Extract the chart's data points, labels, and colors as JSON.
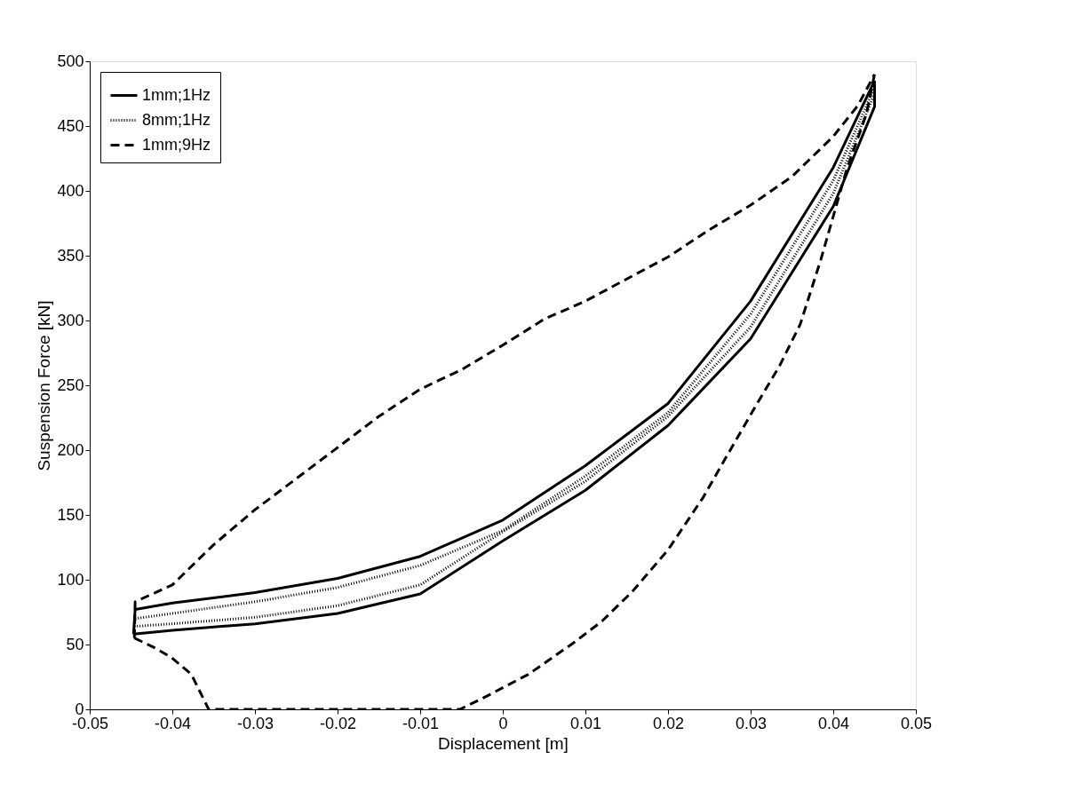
{
  "chart_data": {
    "type": "line",
    "xlabel": "Displacement [m]",
    "ylabel": "Suspension Force [kN]",
    "xlim": [
      -0.05,
      0.05
    ],
    "xticks": [
      -0.05,
      -0.04,
      -0.03,
      -0.02,
      -0.01,
      0,
      0.01,
      0.02,
      0.03,
      0.04,
      0.05
    ],
    "ylim": [
      0,
      500
    ],
    "yticks": [
      0,
      50,
      100,
      150,
      200,
      250,
      300,
      350,
      400,
      450,
      500
    ],
    "grid": false,
    "legend": "top left",
    "marker": "none",
    "series": [
      {
        "name": "1mm;1Hz",
        "color": "#000000",
        "line_style": "solid",
        "x": [
          -0.0447,
          -0.0445,
          -0.04,
          -0.03,
          -0.02,
          -0.01,
          0,
          0.01,
          0.02,
          0.03,
          0.04,
          0.045
        ],
        "values": [
          58,
          77,
          82,
          90,
          101,
          118,
          146,
          188,
          236,
          315,
          418,
          485
        ]
      },
      {
        "color": "#000000",
        "line_style": "solid",
        "x": [
          -0.0447,
          -0.04,
          -0.03,
          -0.02,
          -0.01,
          0,
          0.01,
          0.02,
          0.03,
          0.04,
          0.045,
          0.045
        ],
        "values": [
          58,
          61,
          66,
          74,
          89,
          130,
          169,
          219,
          286,
          388,
          465,
          485
        ]
      },
      {
        "name": "8mm;1Hz",
        "color": "#000000",
        "line_style": "dotted",
        "x": [
          -0.0446,
          -0.0445,
          -0.04,
          -0.03,
          -0.02,
          -0.01,
          0,
          0.01,
          0.02,
          0.03,
          0.04,
          0.045
        ],
        "values": [
          64,
          70,
          74,
          83,
          94,
          111,
          138,
          180,
          229,
          305,
          408,
          480
        ]
      },
      {
        "color": "#000000",
        "line_style": "dotted",
        "x": [
          -0.0446,
          -0.04,
          -0.03,
          -0.02,
          -0.01,
          0,
          0.01,
          0.02,
          0.03,
          0.04,
          0.045,
          0.045
        ],
        "values": [
          64,
          66,
          71,
          80,
          96,
          137,
          176,
          226,
          295,
          398,
          475,
          480
        ]
      },
      {
        "name": "1mm;9Hz",
        "color": "#000000",
        "line_style": "dashed",
        "x": [
          -0.0446,
          -0.0445,
          -0.04,
          -0.035,
          -0.03,
          -0.025,
          -0.02,
          -0.015,
          -0.01,
          -0.005,
          0,
          0.005,
          0.01,
          0.015,
          0.02,
          0.025,
          0.03,
          0.035,
          0.04,
          0.043,
          0.045
        ],
        "values": [
          55,
          83,
          96,
          127,
          154,
          178,
          202,
          226,
          247,
          262,
          281,
          301,
          315,
          332,
          349,
          370,
          389,
          411,
          442,
          466,
          490
        ]
      },
      {
        "color": "#000000",
        "line_style": "dashed",
        "x": [
          -0.0446,
          -0.0423,
          -0.0401,
          -0.0377,
          -0.0356,
          -0.0052,
          -0.0023,
          0.0031,
          0.0085,
          0.012,
          0.0157,
          0.02,
          0.0243,
          0.0268,
          0.0307,
          0.0335,
          0.036,
          0.0385,
          0.0416,
          0.044,
          0.045
        ],
        "values": [
          55,
          48,
          40,
          27,
          0,
          0,
          9,
          27,
          51,
          68,
          91,
          123,
          164,
          192,
          235,
          265,
          297,
          347,
          416,
          459,
          490
        ]
      }
    ]
  }
}
